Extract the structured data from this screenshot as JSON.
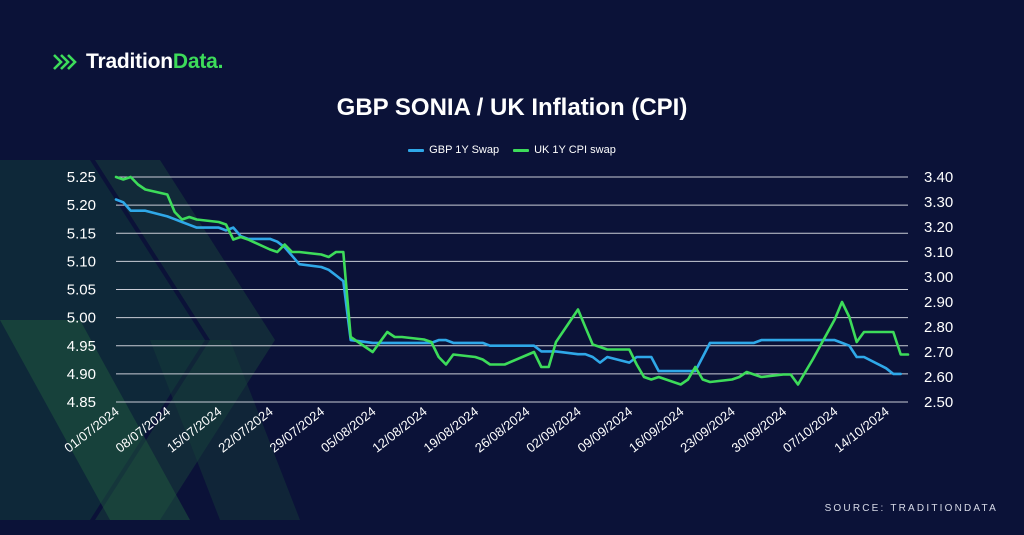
{
  "brand": {
    "name_part1": "Tradition",
    "name_part2": "Data.",
    "accent_color": "#3ddc5a",
    "logo_icon": "stacked-chevrons-icon"
  },
  "source_text": "SOURCE: TRADITIONDATA",
  "colors": {
    "background": "#0b1238",
    "gbp": "#2fa8e8",
    "cpi": "#3ddc5a",
    "grid": "#c9ccd6"
  },
  "chart_data": {
    "type": "line",
    "title": "GBP SONIA / UK Inflation (CPI)",
    "legend": "top-center",
    "grid": true,
    "x_tick_labels": [
      "01/07/2024",
      "08/07/2024",
      "15/07/2024",
      "22/07/2024",
      "29/07/2024",
      "05/08/2024",
      "12/08/2024",
      "19/08/2024",
      "26/08/2024",
      "02/09/2024",
      "09/09/2024",
      "16/09/2024",
      "23/09/2024",
      "30/09/2024",
      "07/10/2024",
      "14/10/2024"
    ],
    "y_left": {
      "min": 4.85,
      "max": 5.25,
      "ticks": [
        "4.85",
        "4.90",
        "4.95",
        "5.00",
        "5.05",
        "5.10",
        "5.15",
        "5.20",
        "5.25"
      ]
    },
    "y_right": {
      "min": 2.5,
      "max": 3.4,
      "ticks": [
        "2.50",
        "2.60",
        "2.70",
        "2.80",
        "2.90",
        "3.00",
        "3.10",
        "3.20",
        "3.30",
        "3.40"
      ]
    },
    "series": [
      {
        "name": "GBP 1Y Swap",
        "axis": "left",
        "points": [
          [
            "01/07/2024",
            5.21
          ],
          [
            "02/07/2024",
            5.205
          ],
          [
            "03/07/2024",
            5.19
          ],
          [
            "05/07/2024",
            5.19
          ],
          [
            "08/07/2024",
            5.18
          ],
          [
            "09/07/2024",
            5.175
          ],
          [
            "10/07/2024",
            5.17
          ],
          [
            "11/07/2024",
            5.165
          ],
          [
            "12/07/2024",
            5.16
          ],
          [
            "15/07/2024",
            5.16
          ],
          [
            "16/07/2024",
            5.155
          ],
          [
            "17/07/2024",
            5.16
          ],
          [
            "18/07/2024",
            5.145
          ],
          [
            "19/07/2024",
            5.14
          ],
          [
            "22/07/2024",
            5.14
          ],
          [
            "23/07/2024",
            5.135
          ],
          [
            "24/07/2024",
            5.125
          ],
          [
            "25/07/2024",
            5.11
          ],
          [
            "26/07/2024",
            5.095
          ],
          [
            "29/07/2024",
            5.09
          ],
          [
            "30/07/2024",
            5.085
          ],
          [
            "31/07/2024",
            5.075
          ],
          [
            "01/08/2024",
            5.065
          ],
          [
            "02/08/2024",
            4.96
          ],
          [
            "05/08/2024",
            4.955
          ],
          [
            "06/08/2024",
            4.955
          ],
          [
            "07/08/2024",
            4.955
          ],
          [
            "08/08/2024",
            4.955
          ],
          [
            "09/08/2024",
            4.955
          ],
          [
            "12/08/2024",
            4.955
          ],
          [
            "13/08/2024",
            4.955
          ],
          [
            "14/08/2024",
            4.96
          ],
          [
            "15/08/2024",
            4.96
          ],
          [
            "16/08/2024",
            4.955
          ],
          [
            "19/08/2024",
            4.955
          ],
          [
            "20/08/2024",
            4.955
          ],
          [
            "21/08/2024",
            4.95
          ],
          [
            "22/08/2024",
            4.95
          ],
          [
            "23/08/2024",
            4.95
          ],
          [
            "27/08/2024",
            4.95
          ],
          [
            "28/08/2024",
            4.94
          ],
          [
            "29/08/2024",
            4.94
          ],
          [
            "30/08/2024",
            4.94
          ],
          [
            "02/09/2024",
            4.935
          ],
          [
            "03/09/2024",
            4.935
          ],
          [
            "04/09/2024",
            4.93
          ],
          [
            "05/09/2024",
            4.92
          ],
          [
            "06/09/2024",
            4.93
          ],
          [
            "09/09/2024",
            4.92
          ],
          [
            "10/09/2024",
            4.93
          ],
          [
            "11/09/2024",
            4.93
          ],
          [
            "12/09/2024",
            4.93
          ],
          [
            "13/09/2024",
            4.905
          ],
          [
            "16/09/2024",
            4.905
          ],
          [
            "17/09/2024",
            4.905
          ],
          [
            "18/09/2024",
            4.905
          ],
          [
            "19/09/2024",
            4.93
          ],
          [
            "20/09/2024",
            4.955
          ],
          [
            "23/09/2024",
            4.955
          ],
          [
            "24/09/2024",
            4.955
          ],
          [
            "25/09/2024",
            4.955
          ],
          [
            "26/09/2024",
            4.955
          ],
          [
            "27/09/2024",
            4.96
          ],
          [
            "30/09/2024",
            4.96
          ],
          [
            "01/10/2024",
            4.96
          ],
          [
            "02/10/2024",
            4.96
          ],
          [
            "03/10/2024",
            4.96
          ],
          [
            "04/10/2024",
            4.96
          ],
          [
            "07/10/2024",
            4.96
          ],
          [
            "08/10/2024",
            4.955
          ],
          [
            "09/10/2024",
            4.95
          ],
          [
            "10/10/2024",
            4.93
          ],
          [
            "11/10/2024",
            4.93
          ],
          [
            "14/10/2024",
            4.91
          ],
          [
            "15/10/2024",
            4.9
          ],
          [
            "16/10/2024",
            4.9
          ]
        ]
      },
      {
        "name": "UK 1Y CPI swap",
        "axis": "right",
        "points": [
          [
            "01/07/2024",
            3.4
          ],
          [
            "02/07/2024",
            3.39
          ],
          [
            "03/07/2024",
            3.4
          ],
          [
            "04/07/2024",
            3.37
          ],
          [
            "05/07/2024",
            3.35
          ],
          [
            "08/07/2024",
            3.33
          ],
          [
            "09/07/2024",
            3.26
          ],
          [
            "10/07/2024",
            3.23
          ],
          [
            "11/07/2024",
            3.24
          ],
          [
            "12/07/2024",
            3.23
          ],
          [
            "15/07/2024",
            3.22
          ],
          [
            "16/07/2024",
            3.21
          ],
          [
            "17/07/2024",
            3.15
          ],
          [
            "18/07/2024",
            3.16
          ],
          [
            "19/07/2024",
            3.15
          ],
          [
            "22/07/2024",
            3.11
          ],
          [
            "23/07/2024",
            3.1
          ],
          [
            "24/07/2024",
            3.13
          ],
          [
            "25/07/2024",
            3.1
          ],
          [
            "26/07/2024",
            3.1
          ],
          [
            "29/07/2024",
            3.09
          ],
          [
            "30/07/2024",
            3.08
          ],
          [
            "31/07/2024",
            3.1
          ],
          [
            "01/08/2024",
            3.1
          ],
          [
            "02/08/2024",
            2.76
          ],
          [
            "05/08/2024",
            2.7
          ],
          [
            "06/08/2024",
            2.74
          ],
          [
            "07/08/2024",
            2.78
          ],
          [
            "08/08/2024",
            2.76
          ],
          [
            "09/08/2024",
            2.76
          ],
          [
            "12/08/2024",
            2.75
          ],
          [
            "13/08/2024",
            2.74
          ],
          [
            "14/08/2024",
            2.68
          ],
          [
            "15/08/2024",
            2.65
          ],
          [
            "16/08/2024",
            2.69
          ],
          [
            "19/08/2024",
            2.68
          ],
          [
            "20/08/2024",
            2.67
          ],
          [
            "21/08/2024",
            2.65
          ],
          [
            "22/08/2024",
            2.65
          ],
          [
            "23/08/2024",
            2.65
          ],
          [
            "27/08/2024",
            2.7
          ],
          [
            "28/08/2024",
            2.64
          ],
          [
            "29/08/2024",
            2.64
          ],
          [
            "30/08/2024",
            2.74
          ],
          [
            "02/09/2024",
            2.87
          ],
          [
            "03/09/2024",
            2.8
          ],
          [
            "04/09/2024",
            2.73
          ],
          [
            "05/09/2024",
            2.72
          ],
          [
            "06/09/2024",
            2.71
          ],
          [
            "09/09/2024",
            2.71
          ],
          [
            "10/09/2024",
            2.65
          ],
          [
            "11/09/2024",
            2.6
          ],
          [
            "12/09/2024",
            2.59
          ],
          [
            "13/09/2024",
            2.6
          ],
          [
            "16/09/2024",
            2.57
          ],
          [
            "17/09/2024",
            2.59
          ],
          [
            "18/09/2024",
            2.64
          ],
          [
            "19/09/2024",
            2.59
          ],
          [
            "20/09/2024",
            2.58
          ],
          [
            "23/09/2024",
            2.59
          ],
          [
            "24/09/2024",
            2.6
          ],
          [
            "25/09/2024",
            2.62
          ],
          [
            "26/09/2024",
            2.61
          ],
          [
            "27/09/2024",
            2.6
          ],
          [
            "30/09/2024",
            2.61
          ],
          [
            "01/10/2024",
            2.61
          ],
          [
            "02/10/2024",
            2.57
          ],
          [
            "03/10/2024",
            2.62
          ],
          [
            "04/10/2024",
            2.67
          ],
          [
            "07/10/2024",
            2.83
          ],
          [
            "08/10/2024",
            2.9
          ],
          [
            "09/10/2024",
            2.84
          ],
          [
            "10/10/2024",
            2.74
          ],
          [
            "11/10/2024",
            2.78
          ],
          [
            "14/10/2024",
            2.78
          ],
          [
            "15/10/2024",
            2.78
          ],
          [
            "16/10/2024",
            2.69
          ],
          [
            "17/10/2024",
            2.69
          ]
        ]
      }
    ]
  }
}
